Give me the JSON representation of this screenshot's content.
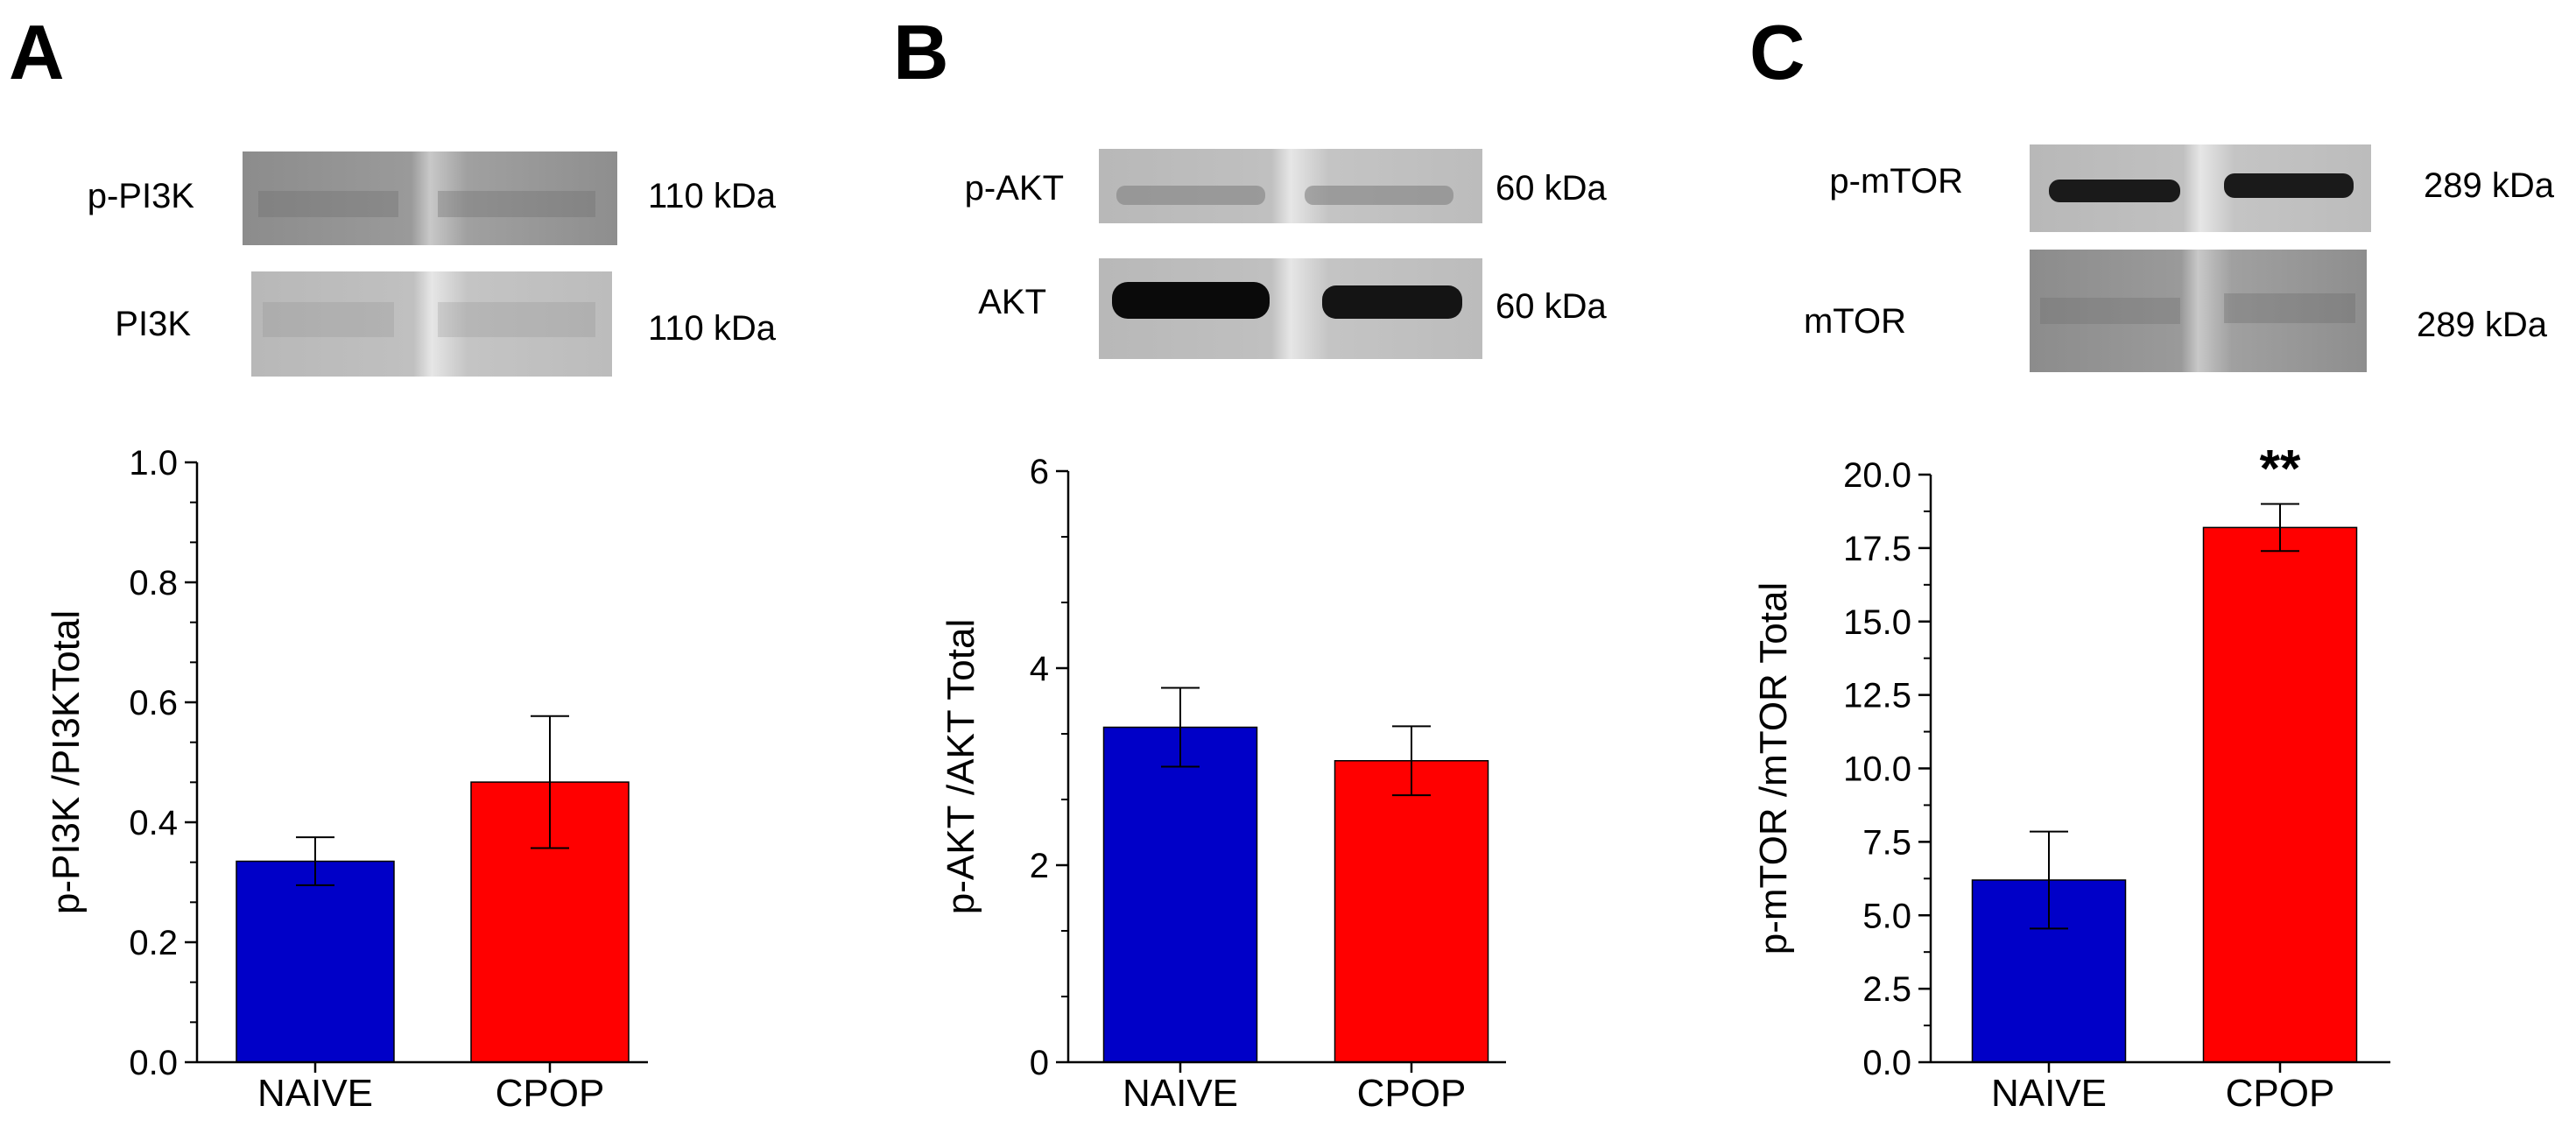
{
  "colors": {
    "naive": "#0000c8",
    "cpop": "#ff0000",
    "axis": "#000000"
  },
  "panels": [
    {
      "letter": "A",
      "blots": [
        {
          "name": "p-PI3K",
          "kda": "110 kDa"
        },
        {
          "name": "PI3K",
          "kda": "110 kDa"
        }
      ]
    },
    {
      "letter": "B",
      "blots": [
        {
          "name": "p-AKT",
          "kda": "60 kDa"
        },
        {
          "name": "AKT",
          "kda": "60 kDa"
        }
      ]
    },
    {
      "letter": "C",
      "blots": [
        {
          "name": "p-mTOR",
          "kda": "289 kDa"
        },
        {
          "name": "mTOR",
          "kda": "289 kDa"
        }
      ]
    }
  ],
  "chart_data": [
    {
      "type": "bar",
      "categories": [
        "NAIVE",
        "CPOP"
      ],
      "values": [
        0.335,
        0.467
      ],
      "errors": [
        0.04,
        0.11
      ],
      "ylabel": "p-PI3K /PI3KTotal",
      "ylim": [
        0,
        1.0
      ],
      "yticks": [
        0.0,
        0.2,
        0.4,
        0.6,
        0.8,
        1.0
      ],
      "ytick_labels": [
        "0.0",
        "0.2",
        "0.4",
        "0.6",
        "0.8",
        "1.0"
      ],
      "annotations": []
    },
    {
      "type": "bar",
      "categories": [
        "NAIVE",
        "CPOP"
      ],
      "values": [
        3.4,
        3.06
      ],
      "errors": [
        0.4,
        0.35
      ],
      "ylabel": "p-AKT /AKT Total",
      "ylim": [
        0,
        6
      ],
      "yticks": [
        0,
        2,
        4,
        6
      ],
      "ytick_labels": [
        "0",
        "2",
        "4",
        "6"
      ],
      "annotations": []
    },
    {
      "type": "bar",
      "categories": [
        "NAIVE",
        "CPOP"
      ],
      "values": [
        6.2,
        18.2
      ],
      "errors": [
        1.65,
        0.8
      ],
      "ylabel": "p-mTOR /mTOR Total",
      "ylim": [
        0,
        20
      ],
      "yticks": [
        0,
        2.5,
        5,
        7.5,
        10,
        12.5,
        15,
        17.5,
        20
      ],
      "ytick_labels": [
        "0.0",
        "2.5",
        "5.0",
        "7.5",
        "10.0",
        "12.5",
        "15.0",
        "17.5",
        "20.0"
      ],
      "annotations": [
        {
          "category": "CPOP",
          "text": "**"
        }
      ]
    }
  ]
}
